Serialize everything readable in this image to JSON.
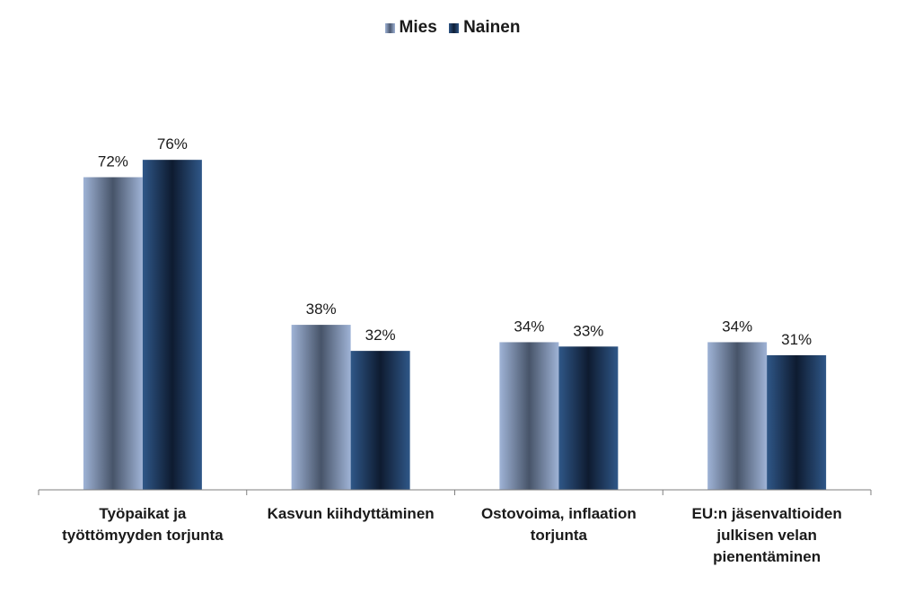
{
  "chart_data": {
    "type": "bar",
    "categories": [
      [
        "Työpaikat ja",
        "työttömyyden torjunta"
      ],
      [
        "Kasvun kiihdyttäminen"
      ],
      [
        "Ostovoima, inflaation",
        "torjunta"
      ],
      [
        "EU:n jäsenvaltioiden",
        "julkisen velan",
        "pienentäminen"
      ]
    ],
    "series": [
      {
        "name": "Mies",
        "values": [
          72,
          38,
          34,
          34
        ],
        "labels": [
          "72%",
          "38%",
          "34%",
          "34%"
        ],
        "color": "#8ca0c3"
      },
      {
        "name": "Nainen",
        "values": [
          76,
          32,
          33,
          31
        ],
        "labels": [
          "76%",
          "32%",
          "33%",
          "31%"
        ],
        "color": "#2f5586"
      }
    ],
    "ylim": [
      0,
      100
    ],
    "grid": false,
    "legend_position": "top-center"
  }
}
